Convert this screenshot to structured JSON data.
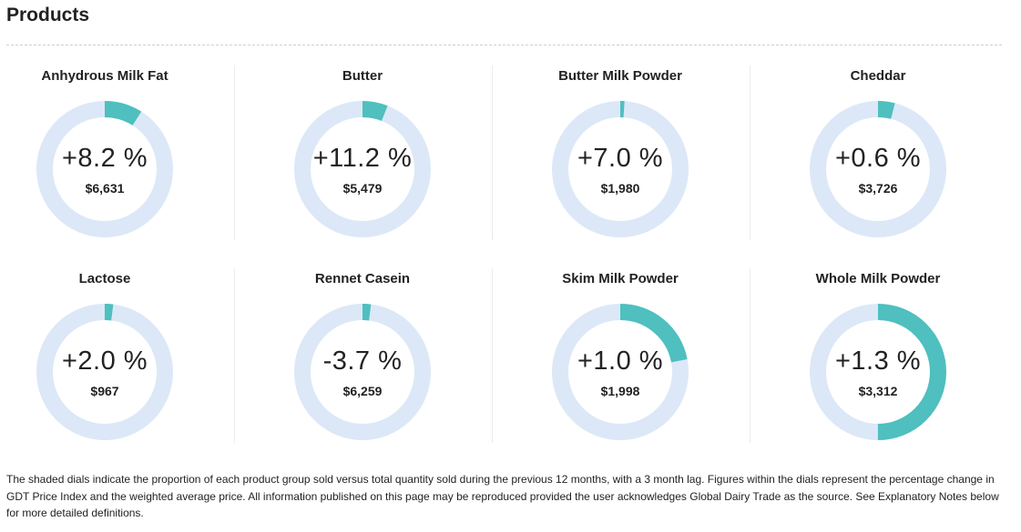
{
  "section": {
    "title": "Products"
  },
  "colors": {
    "ring_track": "#dce8f7",
    "ring_fill": "#4fbfbf"
  },
  "products": [
    {
      "name": "Anhydrous Milk Fat",
      "change": "+8.2 %",
      "price": "$6,631",
      "share": 0.09
    },
    {
      "name": "Butter",
      "change": "+11.2 %",
      "price": "$5,479",
      "share": 0.06
    },
    {
      "name": "Butter Milk Powder",
      "change": "+7.0 %",
      "price": "$1,980",
      "share": 0.01
    },
    {
      "name": "Cheddar",
      "change": "+0.6 %",
      "price": "$3,726",
      "share": 0.04
    },
    {
      "name": "Lactose",
      "change": "+2.0 %",
      "price": "$967",
      "share": 0.02
    },
    {
      "name": "Rennet Casein",
      "change": "-3.7 %",
      "price": "$6,259",
      "share": 0.02
    },
    {
      "name": "Skim Milk Powder",
      "change": "+1.0 %",
      "price": "$1,998",
      "share": 0.22
    },
    {
      "name": "Whole Milk Powder",
      "change": "+1.3 %",
      "price": "$3,312",
      "share": 0.5
    }
  ],
  "footnote": "The shaded dials indicate the proportion of each product group sold versus total quantity sold during the previous 12 months, with a 3 month lag. Figures within the dials represent the percentage change in GDT Price Index and the weighted average price. All information published on this page may be reproduced provided the user acknowledges Global Dairy Trade as the source. See Explanatory Notes below for more detailed definitions."
}
